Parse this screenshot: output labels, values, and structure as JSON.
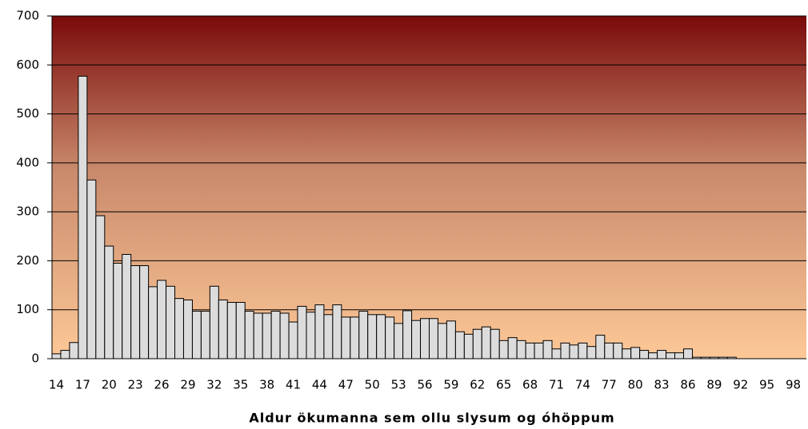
{
  "chart_data": {
    "type": "bar",
    "x_label": "Aldur ökumanna sem ollu slysum og óhöppum",
    "categories": [
      "14",
      null,
      null,
      "17",
      null,
      null,
      "20",
      null,
      null,
      "23",
      null,
      null,
      "26",
      null,
      null,
      "29",
      null,
      null,
      "32",
      null,
      null,
      "35",
      null,
      null,
      "38",
      null,
      null,
      "41",
      null,
      null,
      "44",
      null,
      null,
      "47",
      null,
      null,
      "50",
      null,
      null,
      "53",
      null,
      null,
      "56",
      null,
      null,
      "59",
      null,
      null,
      "62",
      null,
      null,
      "65",
      null,
      null,
      "68",
      null,
      null,
      "71",
      null,
      null,
      "74",
      null,
      null,
      "77",
      null,
      null,
      "80",
      null,
      null,
      "83",
      null,
      null,
      "86",
      null,
      null,
      "89",
      null,
      null,
      "92",
      null,
      null,
      "95",
      null,
      null,
      "98",
      null
    ],
    "values": [
      10,
      17,
      33,
      577,
      365,
      292,
      230,
      195,
      213,
      190,
      190,
      147,
      160,
      148,
      123,
      120,
      97,
      97,
      148,
      120,
      115,
      115,
      97,
      93,
      93,
      97,
      93,
      75,
      107,
      95,
      110,
      90,
      110,
      85,
      85,
      97,
      90,
      90,
      85,
      72,
      98,
      78,
      82,
      82,
      72,
      77,
      55,
      50,
      60,
      65,
      60,
      37,
      43,
      37,
      32,
      32,
      37,
      20,
      32,
      28,
      32,
      25,
      48,
      32,
      32,
      20,
      23,
      17,
      12,
      17,
      12,
      12,
      20,
      3,
      3,
      3,
      3,
      3,
      0,
      0,
      0,
      0,
      0,
      0,
      0,
      0
    ],
    "color": "#dcdcdc",
    "ylim": [
      0,
      700
    ],
    "yticks": [
      0,
      100,
      200,
      300,
      400,
      500,
      600,
      700
    ],
    "grid": true
  }
}
